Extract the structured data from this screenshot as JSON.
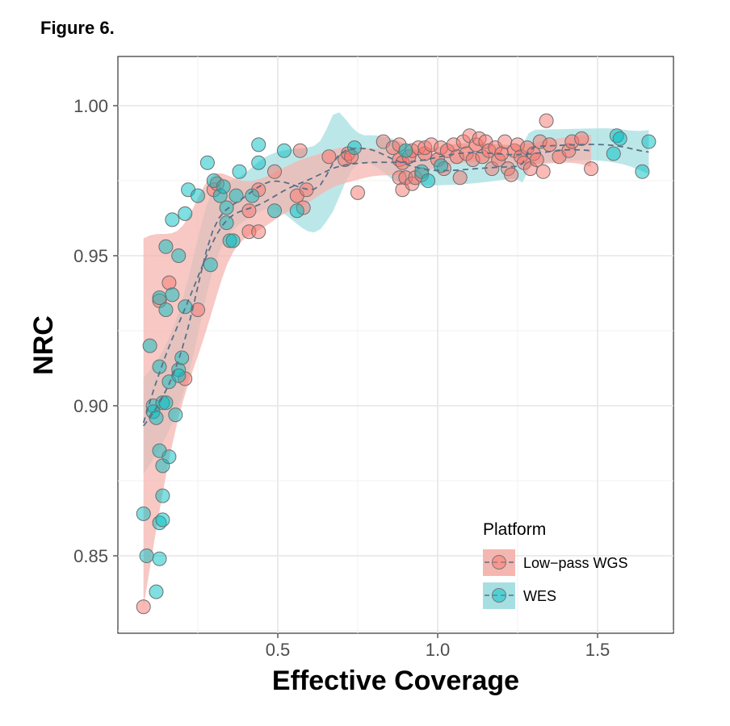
{
  "figure_label": "Figure 6.",
  "chart_data": {
    "type": "scatter",
    "xlabel": "Effective Coverage",
    "ylabel": "NRC",
    "xlim": [
      0.0,
      1.75
    ],
    "ylim": [
      0.825,
      1.015
    ],
    "x_ticks": [
      {
        "value": 0.5,
        "label": "0.5"
      },
      {
        "value": 1.0,
        "label": "1.0"
      },
      {
        "value": 1.5,
        "label": "1.5"
      }
    ],
    "y_ticks": [
      {
        "value": 0.85,
        "label": "0.85"
      },
      {
        "value": 0.9,
        "label": "0.90"
      },
      {
        "value": 0.95,
        "label": "0.95"
      },
      {
        "value": 1.0,
        "label": "1.00"
      }
    ],
    "grid": true,
    "legend": {
      "title": "Platform",
      "placement": "bottom-right"
    },
    "series": [
      {
        "name": "Low−pass WGS",
        "color": "#F8766D",
        "band_color": "#F4B6B0",
        "points": [
          [
            0.08,
            0.833
          ],
          [
            0.13,
            0.935
          ],
          [
            0.16,
            0.941
          ],
          [
            0.21,
            0.909
          ],
          [
            0.25,
            0.932
          ],
          [
            0.3,
            0.972
          ],
          [
            0.31,
            0.974
          ],
          [
            0.41,
            0.958
          ],
          [
            0.41,
            0.965
          ],
          [
            0.44,
            0.958
          ],
          [
            0.44,
            0.972
          ],
          [
            0.49,
            0.978
          ],
          [
            0.56,
            0.97
          ],
          [
            0.57,
            0.985
          ],
          [
            0.58,
            0.966
          ],
          [
            0.59,
            0.972
          ],
          [
            0.66,
            0.983
          ],
          [
            0.71,
            0.982
          ],
          [
            0.72,
            0.984
          ],
          [
            0.73,
            0.983
          ],
          [
            0.75,
            0.971
          ],
          [
            0.83,
            0.988
          ],
          [
            0.86,
            0.986
          ],
          [
            0.88,
            0.987
          ],
          [
            0.88,
            0.982
          ],
          [
            0.88,
            0.976
          ],
          [
            0.89,
            0.972
          ],
          [
            0.89,
            0.981
          ],
          [
            0.9,
            0.976
          ],
          [
            0.91,
            0.983
          ],
          [
            0.92,
            0.985
          ],
          [
            0.92,
            0.974
          ],
          [
            0.93,
            0.976
          ],
          [
            0.94,
            0.986
          ],
          [
            0.95,
            0.977
          ],
          [
            0.96,
            0.984
          ],
          [
            0.96,
            0.986
          ],
          [
            0.98,
            0.987
          ],
          [
            1.0,
            0.982
          ],
          [
            1.01,
            0.986
          ],
          [
            1.02,
            0.979
          ],
          [
            1.03,
            0.985
          ],
          [
            1.05,
            0.987
          ],
          [
            1.06,
            0.983
          ],
          [
            1.07,
            0.976
          ],
          [
            1.08,
            0.988
          ],
          [
            1.09,
            0.984
          ],
          [
            1.1,
            0.99
          ],
          [
            1.11,
            0.982
          ],
          [
            1.12,
            0.987
          ],
          [
            1.13,
            0.989
          ],
          [
            1.14,
            0.983
          ],
          [
            1.15,
            0.988
          ],
          [
            1.16,
            0.985
          ],
          [
            1.17,
            0.979
          ],
          [
            1.18,
            0.986
          ],
          [
            1.19,
            0.982
          ],
          [
            1.2,
            0.984
          ],
          [
            1.21,
            0.988
          ],
          [
            1.22,
            0.979
          ],
          [
            1.23,
            0.977
          ],
          [
            1.24,
            0.985
          ],
          [
            1.25,
            0.987
          ],
          [
            1.26,
            0.983
          ],
          [
            1.27,
            0.981
          ],
          [
            1.28,
            0.986
          ],
          [
            1.29,
            0.979
          ],
          [
            1.3,
            0.984
          ],
          [
            1.31,
            0.982
          ],
          [
            1.32,
            0.988
          ],
          [
            1.33,
            0.978
          ],
          [
            1.34,
            0.995
          ],
          [
            1.35,
            0.987
          ],
          [
            1.38,
            0.983
          ],
          [
            1.41,
            0.985
          ],
          [
            1.42,
            0.988
          ],
          [
            1.45,
            0.989
          ],
          [
            1.48,
            0.979
          ]
        ]
      },
      {
        "name": "WES",
        "color": "#00BFC4",
        "band_color": "#A6DFE2",
        "points": [
          [
            0.08,
            0.864
          ],
          [
            0.09,
            0.85
          ],
          [
            0.1,
            0.92
          ],
          [
            0.11,
            0.9
          ],
          [
            0.11,
            0.898
          ],
          [
            0.12,
            0.896
          ],
          [
            0.12,
            0.838
          ],
          [
            0.13,
            0.885
          ],
          [
            0.13,
            0.849
          ],
          [
            0.13,
            0.861
          ],
          [
            0.13,
            0.913
          ],
          [
            0.13,
            0.936
          ],
          [
            0.14,
            0.87
          ],
          [
            0.14,
            0.88
          ],
          [
            0.14,
            0.862
          ],
          [
            0.14,
            0.901
          ],
          [
            0.15,
            0.953
          ],
          [
            0.15,
            0.932
          ],
          [
            0.15,
            0.901
          ],
          [
            0.16,
            0.883
          ],
          [
            0.16,
            0.908
          ],
          [
            0.17,
            0.962
          ],
          [
            0.17,
            0.937
          ],
          [
            0.18,
            0.897
          ],
          [
            0.19,
            0.95
          ],
          [
            0.19,
            0.912
          ],
          [
            0.19,
            0.91
          ],
          [
            0.2,
            0.916
          ],
          [
            0.21,
            0.964
          ],
          [
            0.21,
            0.933
          ],
          [
            0.22,
            0.972
          ],
          [
            0.25,
            0.97
          ],
          [
            0.28,
            0.981
          ],
          [
            0.29,
            0.947
          ],
          [
            0.3,
            0.975
          ],
          [
            0.32,
            0.97
          ],
          [
            0.33,
            0.973
          ],
          [
            0.34,
            0.961
          ],
          [
            0.34,
            0.966
          ],
          [
            0.35,
            0.955
          ],
          [
            0.36,
            0.955
          ],
          [
            0.37,
            0.97
          ],
          [
            0.38,
            0.978
          ],
          [
            0.42,
            0.97
          ],
          [
            0.44,
            0.987
          ],
          [
            0.44,
            0.981
          ],
          [
            0.49,
            0.965
          ],
          [
            0.52,
            0.985
          ],
          [
            0.56,
            0.965
          ],
          [
            0.74,
            0.986
          ],
          [
            0.9,
            0.985
          ],
          [
            0.95,
            0.978
          ],
          [
            0.97,
            0.975
          ],
          [
            1.01,
            0.98
          ],
          [
            1.55,
            0.984
          ],
          [
            1.56,
            0.99
          ],
          [
            1.57,
            0.989
          ],
          [
            1.64,
            0.978
          ],
          [
            1.66,
            0.988
          ]
        ]
      }
    ]
  }
}
